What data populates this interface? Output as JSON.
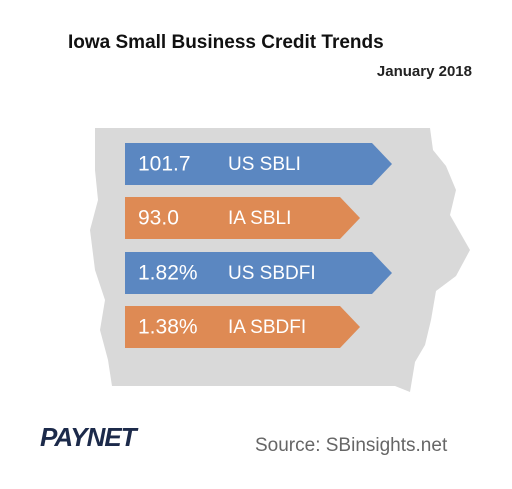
{
  "header": {
    "title": "Iowa Small Business Credit Trends",
    "subtitle": "January 2018"
  },
  "items": [
    {
      "value": "101.7",
      "label": "US SBLI",
      "color": "#5b87c1"
    },
    {
      "value": "93.0",
      "label": "IA SBLI",
      "color": "#de8a54"
    },
    {
      "value": "1.82%",
      "label": "US SBDFI",
      "color": "#5b87c1"
    },
    {
      "value": "1.38%",
      "label": "IA SBDFI",
      "color": "#de8a54"
    }
  ],
  "footer": {
    "logo": "PAYNET",
    "source": "Source: SBinsights.net"
  }
}
